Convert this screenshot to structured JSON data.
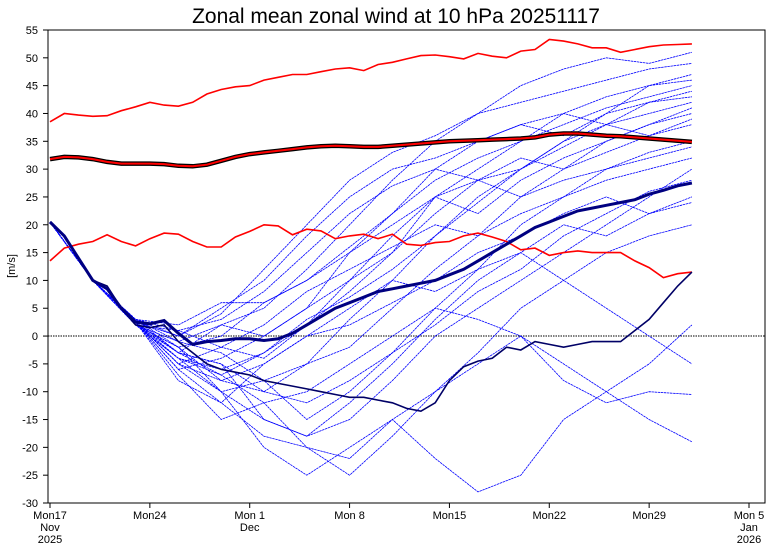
{
  "chart_data": {
    "type": "line",
    "title": "Zonal mean zonal wind at 10 hPa 20251117",
    "ylabel": "[m/s]",
    "xlabel": "",
    "ylim": [
      -30,
      55
    ],
    "xlim": [
      "2025-11-17",
      "2026-01-05"
    ],
    "yticks": [
      -30,
      -25,
      -20,
      -15,
      -10,
      -5,
      0,
      5,
      10,
      15,
      20,
      25,
      30,
      35,
      40,
      45,
      50,
      55
    ],
    "xticks": [
      {
        "date": "2025-11-17",
        "label": [
          "Mon17",
          "Nov",
          "2025"
        ]
      },
      {
        "date": "2025-11-24",
        "label": [
          "Mon24"
        ]
      },
      {
        "date": "2025-12-01",
        "label": [
          "Mon 1",
          "Dec"
        ]
      },
      {
        "date": "2025-12-08",
        "label": [
          "Mon 8"
        ]
      },
      {
        "date": "2025-12-15",
        "label": [
          "Mon15"
        ]
      },
      {
        "date": "2025-12-22",
        "label": [
          "Mon22"
        ]
      },
      {
        "date": "2025-12-29",
        "label": [
          "Mon29"
        ]
      },
      {
        "date": "2026-01-05",
        "label": [
          "Mon 5",
          "Jan",
          "2026"
        ]
      }
    ],
    "zero_line": true,
    "grid": false,
    "x_daily": [
      "2025-11-17",
      "2025-11-18",
      "2025-11-19",
      "2025-11-20",
      "2025-11-21",
      "2025-11-22",
      "2025-11-23",
      "2025-11-24",
      "2025-11-25",
      "2025-11-26",
      "2025-11-27",
      "2025-11-28",
      "2025-11-29",
      "2025-11-30",
      "2025-12-01",
      "2025-12-02",
      "2025-12-03",
      "2025-12-04",
      "2025-12-05",
      "2025-12-06",
      "2025-12-07",
      "2025-12-08",
      "2025-12-09",
      "2025-12-10",
      "2025-12-11",
      "2025-12-12",
      "2025-12-13",
      "2025-12-14",
      "2025-12-15",
      "2025-12-16",
      "2025-12-17",
      "2025-12-18",
      "2025-12-19",
      "2025-12-20",
      "2025-12-21",
      "2025-12-22",
      "2025-12-23",
      "2025-12-24",
      "2025-12-25",
      "2025-12-26",
      "2025-12-27",
      "2025-12-28",
      "2025-12-29",
      "2025-12-30",
      "2025-12-31",
      "2026-01-01"
    ],
    "x_members": [
      "2025-11-17",
      "2025-11-20",
      "2025-11-23",
      "2025-11-26",
      "2025-11-29",
      "2025-12-02",
      "2025-12-05",
      "2025-12-08",
      "2025-12-11",
      "2025-12-14",
      "2025-12-17",
      "2025-12-20",
      "2025-12-23",
      "2025-12-26",
      "2025-12-29",
      "2026-01-01"
    ],
    "members_color": "#0000ff",
    "members": [
      [
        20.5,
        10,
        2.5,
        -3,
        2,
        5,
        12,
        20,
        28,
        35,
        40,
        45,
        48,
        50,
        49,
        51
      ],
      [
        20.5,
        10,
        2.5,
        -5,
        -8,
        -10,
        -5,
        3,
        10,
        18,
        25,
        30,
        35,
        38,
        40,
        42
      ],
      [
        20.5,
        10,
        2.5,
        0,
        5,
        10,
        18,
        25,
        30,
        32,
        35,
        38,
        40,
        38,
        42,
        44
      ],
      [
        20.5,
        10,
        3,
        -2,
        -10,
        -15,
        -18,
        -15,
        -8,
        0,
        5,
        10,
        15,
        20,
        25,
        30
      ],
      [
        20.5,
        10,
        2,
        -4,
        -6,
        -3,
        2,
        8,
        15,
        22,
        28,
        32,
        30,
        35,
        38,
        40
      ],
      [
        20.5,
        10,
        2.5,
        -6,
        -12,
        -18,
        -20,
        -22,
        -15,
        -10,
        -5,
        0,
        -5,
        -10,
        -15,
        -19
      ],
      [
        20.5,
        10,
        3,
        2,
        6,
        6,
        10,
        15,
        20,
        25,
        28,
        30,
        35,
        40,
        45,
        47
      ],
      [
        20.5,
        10,
        2,
        -1,
        -3,
        -8,
        -5,
        -2,
        5,
        12,
        18,
        25,
        28,
        30,
        33,
        35
      ],
      [
        20.5,
        10,
        2.5,
        -7,
        -15,
        -12,
        -20,
        -25,
        -18,
        -10,
        -3,
        5,
        10,
        15,
        18,
        20
      ],
      [
        20.5,
        10,
        2,
        1,
        3,
        8,
        15,
        22,
        27,
        30,
        28,
        25,
        30,
        33,
        36,
        38
      ],
      [
        20.5,
        10,
        3,
        -3,
        -5,
        -10,
        -12,
        -8,
        -3,
        2,
        8,
        12,
        18,
        22,
        26,
        28
      ],
      [
        20.5,
        10,
        2.5,
        -5,
        -2,
        2,
        8,
        12,
        16,
        20,
        18,
        22,
        25,
        30,
        32,
        34
      ],
      [
        20.5,
        10,
        2,
        -2,
        -8,
        -5,
        0,
        5,
        10,
        8,
        12,
        15,
        10,
        5,
        0,
        -5
      ],
      [
        20.5,
        10,
        2.5,
        -4,
        -10,
        -20,
        -25,
        -20,
        -15,
        -22,
        -28,
        -25,
        -15,
        -10,
        -5,
        2
      ],
      [
        20.5,
        10,
        3,
        0,
        4,
        12,
        20,
        28,
        33,
        36,
        40,
        42,
        44,
        46,
        48,
        49
      ],
      [
        20.5,
        10,
        2.5,
        -6,
        -4,
        0,
        5,
        10,
        15,
        25,
        30,
        35,
        38,
        41,
        43,
        45
      ],
      [
        20.5,
        10,
        2,
        -3,
        -7,
        -12,
        -10,
        -5,
        0,
        5,
        3,
        0,
        -8,
        -12,
        -10,
        -10.5
      ],
      [
        20.5,
        10,
        3,
        -1,
        2,
        0,
        5,
        15,
        22,
        28,
        32,
        35,
        40,
        43,
        45,
        46
      ],
      [
        20.5,
        10,
        2.5,
        -5,
        -10,
        -8,
        -15,
        -10,
        -3,
        5,
        12,
        20,
        25,
        28,
        30,
        32
      ],
      [
        20.5,
        10,
        2,
        -2,
        0,
        6,
        10,
        16,
        22,
        30,
        35,
        38,
        36,
        40,
        42,
        43
      ],
      [
        20.5,
        10,
        2.5,
        -8,
        -12,
        -5,
        0,
        2,
        6,
        10,
        15,
        18,
        22,
        25,
        22,
        25
      ],
      [
        20.5,
        10,
        3,
        1,
        -2,
        -4,
        2,
        10,
        18,
        25,
        22,
        28,
        32,
        35,
        38,
        41
      ],
      [
        20.5,
        10,
        2.5,
        -3,
        -5,
        -15,
        -18,
        -12,
        -5,
        3,
        10,
        15,
        20,
        18,
        22,
        24
      ],
      [
        20.5,
        10,
        2,
        -4,
        -7,
        -3,
        3,
        7,
        12,
        18,
        24,
        30,
        34,
        38,
        36,
        39
      ]
    ],
    "series": [
      {
        "color": "#ff0000",
        "weight": "thin",
        "values": [
          38.5,
          40,
          39.7,
          39.5,
          39.6,
          40.5,
          41.2,
          42,
          41.5,
          41.3,
          42,
          43.5,
          44.3,
          44.8,
          45,
          46,
          46.5,
          47,
          47,
          47.5,
          48,
          48.2,
          47.7,
          48.8,
          49.2,
          49.8,
          50.4,
          50.5,
          50.2,
          49.8,
          50.8,
          50.3,
          50,
          51.2,
          51.5,
          53.3,
          53,
          52.5,
          51.8,
          51.8,
          51,
          51.5,
          52,
          52.3,
          52.4,
          52.5
        ]
      },
      {
        "color": "#ff0000",
        "weight": "thick",
        "outline": "#000000",
        "values": [
          31.8,
          32.2,
          32.1,
          31.8,
          31.3,
          31,
          31,
          31,
          30.9,
          30.6,
          30.5,
          30.8,
          31.5,
          32.2,
          32.7,
          33,
          33.3,
          33.6,
          33.9,
          34.1,
          34.2,
          34.1,
          34,
          34,
          34.2,
          34.4,
          34.6,
          34.8,
          35,
          35.1,
          35.2,
          35.3,
          35.4,
          35.5,
          35.7,
          36.2,
          36.4,
          36.4,
          36.2,
          36,
          35.9,
          35.7,
          35.5,
          35.3,
          35.1,
          34.9
        ]
      },
      {
        "color": "#ff0000",
        "weight": "thin",
        "values": [
          13.5,
          15.8,
          16.5,
          17,
          18.2,
          17,
          16.2,
          17.5,
          18.5,
          18.3,
          17,
          16,
          16,
          17.8,
          18.8,
          20,
          19.8,
          18.2,
          19.2,
          18.9,
          17.5,
          18,
          18.3,
          17.5,
          18.3,
          16.5,
          16.3,
          16.8,
          17,
          18,
          18.5,
          17.8,
          17,
          15.5,
          15.8,
          14.5,
          15,
          15.3,
          15,
          15,
          15,
          13.5,
          12.3,
          10.5,
          11.2,
          11.5
        ]
      },
      {
        "color": "#000066",
        "weight": "medium",
        "values": [
          20.5,
          18,
          14,
          10,
          9,
          5,
          2,
          1.5,
          2,
          -1,
          -3,
          -5,
          -6,
          -6.5,
          -7,
          -8,
          -8.5,
          -9,
          -9.5,
          -10,
          -10.5,
          -11,
          -11,
          -11.5,
          -12,
          -13,
          -13.5,
          -12,
          -8,
          -5.5,
          -4.5,
          -4,
          -2,
          -2.5,
          -1,
          -1.5,
          -2,
          -1.5,
          -1,
          -1,
          -1,
          1,
          3,
          6,
          9,
          11.5
        ]
      },
      {
        "color": "#000080",
        "weight": "thick",
        "values": [
          20.5,
          18,
          14,
          10,
          8.5,
          5,
          2.5,
          2.2,
          2.8,
          0.5,
          -1.5,
          -1,
          -0.8,
          -0.5,
          -0.5,
          -0.8,
          -0.5,
          0.5,
          2,
          3.5,
          5,
          6,
          7,
          8,
          8.5,
          9,
          9.5,
          10,
          11,
          12,
          13.5,
          15,
          16.5,
          18,
          19.5,
          20.5,
          21.5,
          22.5,
          23,
          23.5,
          24,
          24.5,
          25.5,
          26.2,
          27,
          27.5
        ]
      }
    ]
  }
}
